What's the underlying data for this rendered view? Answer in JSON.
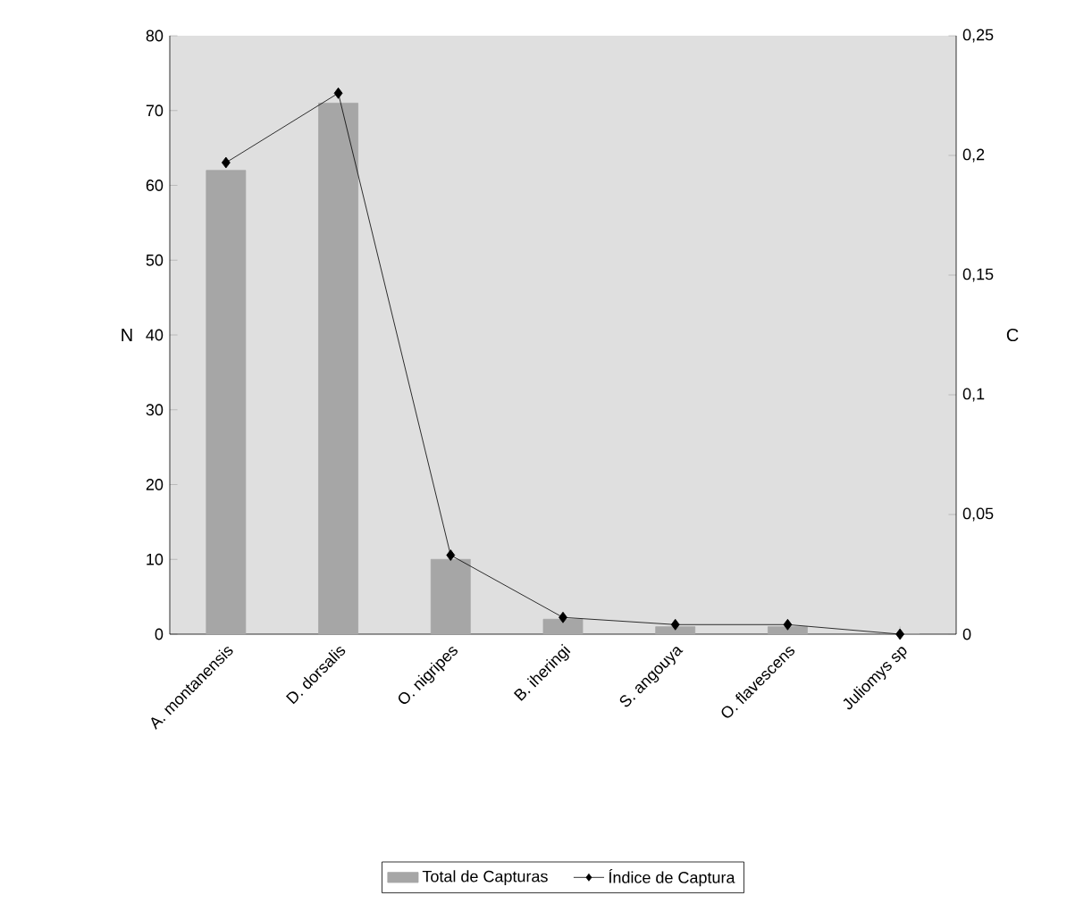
{
  "chart_data": {
    "type": "bar",
    "ylabel": "N",
    "y2label": "C",
    "categories": [
      "A. montanensis",
      "D. dorsalis",
      "O. nigripes",
      "B. iheringi",
      "S. angouya",
      "O. flavescens",
      "Juliomys sp"
    ],
    "series": [
      {
        "name": "Total de Capturas",
        "color": "#a6a6a6",
        "values": [
          62,
          71,
          10,
          2,
          1,
          1,
          0
        ]
      },
      {
        "name": "Índice de Captura",
        "type": "line",
        "axis": "y2",
        "color": "#000000",
        "marker": "diamond",
        "values": [
          0.197,
          0.226,
          0.033,
          0.007,
          0.004,
          0.004,
          0
        ]
      }
    ],
    "ylim": [
      0,
      80
    ],
    "yticks": [
      0,
      10,
      20,
      30,
      40,
      50,
      60,
      70,
      80
    ],
    "y2lim": [
      0,
      0.25
    ],
    "y2ticks": [
      {
        "value": 0,
        "label": "0"
      },
      {
        "value": 0.05,
        "label": "0,05"
      },
      {
        "value": 0.1,
        "label": "0,1"
      },
      {
        "value": 0.15,
        "label": "0,15"
      },
      {
        "value": 0.2,
        "label": "0,2"
      },
      {
        "value": 0.25,
        "label": "0,25"
      }
    ],
    "legend": "bottom",
    "grid": false
  }
}
